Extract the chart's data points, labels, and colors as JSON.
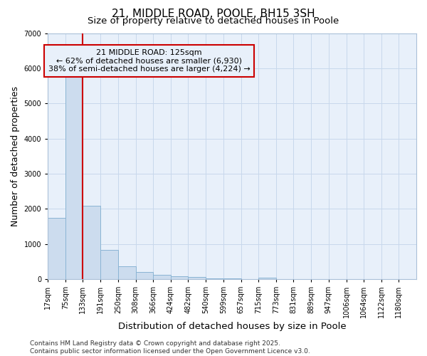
{
  "title": "21, MIDDLE ROAD, POOLE, BH15 3SH",
  "subtitle": "Size of property relative to detached houses in Poole",
  "xlabel": "Distribution of detached houses by size in Poole",
  "ylabel": "Number of detached properties",
  "bin_labels": [
    "17sqm",
    "75sqm",
    "133sqm",
    "191sqm",
    "250sqm",
    "308sqm",
    "366sqm",
    "424sqm",
    "482sqm",
    "540sqm",
    "599sqm",
    "657sqm",
    "715sqm",
    "773sqm",
    "831sqm",
    "889sqm",
    "947sqm",
    "1006sqm",
    "1064sqm",
    "1122sqm",
    "1180sqm"
  ],
  "bin_edges": [
    17,
    75,
    133,
    191,
    250,
    308,
    366,
    424,
    482,
    540,
    599,
    657,
    715,
    773,
    831,
    889,
    947,
    1006,
    1064,
    1122,
    1180,
    1238
  ],
  "bar_heights": [
    1750,
    5800,
    2080,
    820,
    360,
    200,
    110,
    75,
    50,
    25,
    12,
    0,
    30,
    0,
    0,
    0,
    0,
    0,
    0,
    0,
    0
  ],
  "bar_color": "#ccdcee",
  "bar_edgecolor": "#8ab4d4",
  "grid_color": "#c8d8ec",
  "background_color": "#ffffff",
  "plot_background_color": "#e8f0fa",
  "property_line_x": 133,
  "property_line_color": "#cc0000",
  "annotation_line1": "21 MIDDLE ROAD: 125sqm",
  "annotation_line2": "← 62% of detached houses are smaller (6,930)",
  "annotation_line3": "38% of semi-detached houses are larger (4,224) →",
  "annotation_box_color": "#cc0000",
  "ylim": [
    0,
    7000
  ],
  "yticks": [
    0,
    1000,
    2000,
    3000,
    4000,
    5000,
    6000,
    7000
  ],
  "footer_line1": "Contains HM Land Registry data © Crown copyright and database right 2025.",
  "footer_line2": "Contains public sector information licensed under the Open Government Licence v3.0.",
  "title_fontsize": 11,
  "subtitle_fontsize": 9.5,
  "axis_label_fontsize": 9,
  "tick_fontsize": 7,
  "annotation_fontsize": 8,
  "footer_fontsize": 6.5
}
